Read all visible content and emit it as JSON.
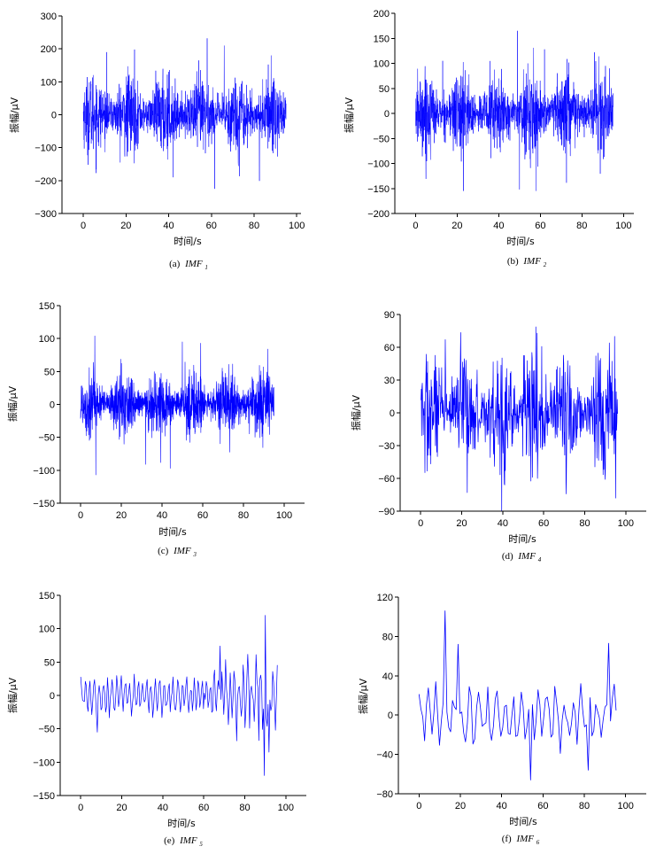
{
  "figure": {
    "line_color": "#0000ff",
    "label_color": "#000000"
  },
  "chart_data": [
    {
      "id": "a",
      "type": "line",
      "caption_prefix": "(a)",
      "caption_name": "IMF",
      "caption_sub": "1",
      "xlabel": "时间/s",
      "ylabel": "振幅/μV",
      "xlim": [
        -10,
        102
      ],
      "ylim": [
        -300,
        300
      ],
      "xticks": [
        0,
        20,
        40,
        60,
        80,
        100
      ],
      "yticks": [
        -300,
        -200,
        -100,
        0,
        100,
        200,
        300
      ],
      "x_range": [
        0,
        95
      ],
      "typical_amplitude": 60,
      "peaks": [
        {
          "x": 24.0,
          "y": 198
        },
        {
          "x": 58.0,
          "y": 232
        },
        {
          "x": 66.0,
          "y": 210
        },
        {
          "x": 61.5,
          "y": -225
        },
        {
          "x": 82.5,
          "y": -201
        },
        {
          "x": 42.0,
          "y": -190
        },
        {
          "x": 11.0,
          "y": 190
        },
        {
          "x": 88.0,
          "y": 180
        }
      ],
      "stroke_width": 0.5,
      "series": [
        {
          "density": "dense"
        }
      ]
    },
    {
      "id": "b",
      "type": "line",
      "caption_prefix": "(b)",
      "caption_name": "IMF",
      "caption_sub": "2",
      "xlabel": "时间/s",
      "ylabel": "振幅/μV",
      "xlim": [
        -10,
        105
      ],
      "ylim": [
        -200,
        200
      ],
      "xticks": [
        0,
        20,
        40,
        60,
        80,
        100
      ],
      "yticks": [
        -200,
        -150,
        -100,
        -50,
        0,
        50,
        100,
        150,
        200
      ],
      "x_range": [
        0,
        95
      ],
      "typical_amplitude": 40,
      "peaks": [
        {
          "x": 49.0,
          "y": 165
        },
        {
          "x": 50.0,
          "y": -152
        },
        {
          "x": 58.0,
          "y": -155
        },
        {
          "x": 23.0,
          "y": -155
        },
        {
          "x": 62.0,
          "y": 128
        },
        {
          "x": 86.0,
          "y": 122
        },
        {
          "x": 13.0,
          "y": 105
        }
      ],
      "stroke_width": 0.5,
      "series": [
        {
          "density": "dense"
        }
      ]
    },
    {
      "id": "c",
      "type": "line",
      "caption_prefix": "(c)",
      "caption_name": "IMF",
      "caption_sub": "3",
      "xlabel": "时间/s",
      "ylabel": "振幅/μV",
      "xlim": [
        -10,
        110
      ],
      "ylim": [
        -150,
        150
      ],
      "xticks": [
        0,
        20,
        40,
        60,
        80,
        100
      ],
      "yticks": [
        -150,
        -100,
        -50,
        0,
        50,
        100,
        150
      ],
      "x_range": [
        0,
        95
      ],
      "typical_amplitude": 25,
      "peaks": [
        {
          "x": 7.0,
          "y": 104
        },
        {
          "x": 7.5,
          "y": -107
        },
        {
          "x": 50.0,
          "y": 95
        },
        {
          "x": 59.0,
          "y": 93
        },
        {
          "x": 92.0,
          "y": 84
        },
        {
          "x": 32.0,
          "y": -91
        },
        {
          "x": 44.0,
          "y": -97
        }
      ],
      "stroke_width": 0.6,
      "series": [
        {
          "density": "dense"
        }
      ]
    },
    {
      "id": "d",
      "type": "line",
      "caption_prefix": "(d)",
      "caption_name": "IMF",
      "caption_sub": "4",
      "xlabel": "时间/s",
      "ylabel": "振幅/μV",
      "xlim": [
        -10,
        110
      ],
      "ylim": [
        -90,
        90
      ],
      "xticks": [
        0,
        20,
        40,
        60,
        80,
        100
      ],
      "yticks": [
        -90,
        -60,
        -30,
        0,
        30,
        60,
        90
      ],
      "x_range": [
        0,
        96
      ],
      "typical_amplitude": 30,
      "peaks": [
        {
          "x": 12.0,
          "y": 67
        },
        {
          "x": 92.0,
          "y": 64
        },
        {
          "x": 94.5,
          "y": 70
        },
        {
          "x": 95.0,
          "y": -78
        },
        {
          "x": 41.0,
          "y": -66
        },
        {
          "x": 57.0,
          "y": -60
        }
      ],
      "stroke_width": 0.7,
      "series": [
        {
          "density": "medium"
        }
      ]
    },
    {
      "id": "e",
      "type": "line",
      "caption_prefix": "(e)",
      "caption_name": "IMF",
      "caption_sub": "5",
      "xlabel": "时间/s",
      "ylabel": "振幅/μV",
      "xlim": [
        -10,
        110
      ],
      "ylim": [
        -150,
        150
      ],
      "xticks": [
        0,
        20,
        40,
        60,
        80,
        100
      ],
      "yticks": [
        -150,
        -100,
        -50,
        0,
        50,
        100,
        150
      ],
      "x_range": [
        0,
        96
      ],
      "typical_amplitude": 25,
      "peaks": [
        {
          "x": 90.0,
          "y": 120
        },
        {
          "x": 89.5,
          "y": -120
        },
        {
          "x": 92.0,
          "y": -85
        },
        {
          "x": 68.0,
          "y": 74
        },
        {
          "x": 8.0,
          "y": -55
        },
        {
          "x": 76.0,
          "y": -68
        }
      ],
      "stroke_width": 0.7,
      "series": [
        {
          "density": "sparse"
        }
      ]
    },
    {
      "id": "f",
      "type": "line",
      "caption_prefix": "(f)",
      "caption_name": "IMF",
      "caption_sub": "6",
      "xlabel": "时间/s",
      "ylabel": "振幅/μV",
      "xlim": [
        -10,
        110
      ],
      "ylim": [
        -80,
        120
      ],
      "xticks": [
        0,
        20,
        40,
        60,
        80,
        100
      ],
      "yticks": [
        -80,
        -40,
        0,
        40,
        80,
        120
      ],
      "x_range": [
        0,
        96
      ],
      "typical_amplitude": 25,
      "peaks": [
        {
          "x": 12.5,
          "y": 106
        },
        {
          "x": 91.5,
          "y": 73
        },
        {
          "x": 19.0,
          "y": 72
        },
        {
          "x": 54.0,
          "y": -66
        },
        {
          "x": 82.0,
          "y": -56
        },
        {
          "x": 97.0,
          "y": 36
        }
      ],
      "stroke_width": 0.8,
      "series": [
        {
          "density": "very-sparse"
        }
      ]
    }
  ]
}
